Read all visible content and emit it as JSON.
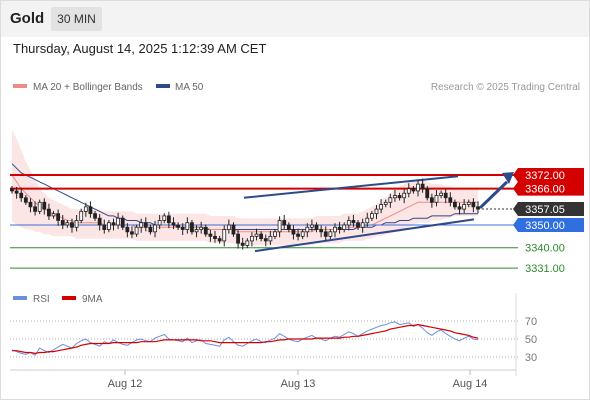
{
  "header": {
    "instrument": "Gold",
    "timeframe": "30 MIN",
    "datetime": "Thursday, August 14, 2025 1:12:39 AM CET"
  },
  "colors": {
    "candle_up": "#ffffff",
    "candle_down": "#222222",
    "ma20": "#ef8a8a",
    "ma50": "#2d4a8a",
    "bollinger_fill": "#fbdcdc",
    "resistance": "#d40000",
    "support_blue": "#3f6fd4",
    "support_green": "#2e8b2e",
    "channel": "#2d4a8a",
    "rsi": "#6b8fe0",
    "rsi_ma": "#d40000",
    "price_label_bg": "#333333",
    "blue_label_bg": "#2f6fe0"
  },
  "chart_data": [
    {
      "type": "candlestick",
      "title": "Gold",
      "timeframe": "30 MIN",
      "x_ticks": [
        "Aug 12",
        "Aug 13",
        "Aug 14"
      ],
      "ylim": [
        3328,
        3390
      ],
      "legend": [
        {
          "name": "MA 20 + Bollinger Bands",
          "color": "#ef8a8a"
        },
        {
          "name": "MA 50",
          "color": "#2d4a8a"
        }
      ],
      "watermark": "Research © 2025 Trading Central",
      "levels": [
        {
          "value": 3372.0,
          "label": "3372.00",
          "kind": "resistance"
        },
        {
          "value": 3366.0,
          "label": "3366.00",
          "kind": "resistance"
        },
        {
          "value": 3357.05,
          "label": "3357.05",
          "kind": "last_price"
        },
        {
          "value": 3350.0,
          "label": "3350.00",
          "kind": "pivot"
        },
        {
          "value": 3340.0,
          "label": "3340.00",
          "kind": "support"
        },
        {
          "value": 3331.0,
          "label": "3331.00",
          "kind": "support"
        }
      ],
      "closes": [
        3365,
        3364,
        3362,
        3360,
        3358,
        3356,
        3360,
        3357,
        3354,
        3355,
        3352,
        3350,
        3351,
        3349,
        3352,
        3356,
        3358,
        3355,
        3353,
        3350,
        3348,
        3351,
        3350,
        3353,
        3349,
        3347,
        3346,
        3349,
        3351,
        3349,
        3347,
        3350,
        3352,
        3354,
        3351,
        3350,
        3349,
        3348,
        3351,
        3347,
        3348,
        3349,
        3346,
        3345,
        3344,
        3343,
        3348,
        3350,
        3346,
        3342,
        3341,
        3343,
        3345,
        3346,
        3344,
        3343,
        3345,
        3347,
        3352,
        3350,
        3348,
        3346,
        3345,
        3347,
        3349,
        3350,
        3348,
        3347,
        3345,
        3347,
        3349,
        3348,
        3350,
        3352,
        3351,
        3349,
        3351,
        3353,
        3355,
        3357,
        3359,
        3360,
        3362,
        3363,
        3362,
        3364,
        3366,
        3365,
        3368,
        3366,
        3362,
        3360,
        3363,
        3364,
        3362,
        3360,
        3358,
        3357,
        3359,
        3360,
        3358,
        3357
      ],
      "ma20": [
        3372,
        3369,
        3366,
        3364,
        3362,
        3360,
        3358,
        3357,
        3356,
        3355,
        3354,
        3353,
        3352,
        3352,
        3351,
        3351,
        3351,
        3351,
        3351,
        3351,
        3350,
        3350,
        3350,
        3350,
        3350,
        3350,
        3350,
        3349,
        3349,
        3349,
        3349,
        3349,
        3349,
        3349,
        3349,
        3349,
        3349,
        3349,
        3349,
        3349,
        3349,
        3349,
        3349,
        3348,
        3348,
        3348,
        3348,
        3348,
        3348,
        3347,
        3347,
        3347,
        3347,
        3347,
        3347,
        3347,
        3347,
        3347,
        3347,
        3347,
        3347,
        3347,
        3347,
        3347,
        3347,
        3347,
        3348,
        3348,
        3348,
        3348,
        3348,
        3348,
        3349,
        3349,
        3349,
        3349,
        3349,
        3350,
        3350,
        3351,
        3352,
        3353,
        3354,
        3355,
        3356,
        3357,
        3358,
        3359,
        3360,
        3360,
        3360,
        3360,
        3360,
        3360,
        3360,
        3360,
        3360,
        3360,
        3360,
        3360,
        3360,
        3360
      ],
      "ma50": [
        3377,
        3375,
        3373,
        3372,
        3371,
        3370,
        3369,
        3368,
        3367,
        3366,
        3365,
        3364,
        3363,
        3362,
        3361,
        3360,
        3359,
        3358,
        3357,
        3356,
        3355,
        3354,
        3354,
        3353,
        3353,
        3352,
        3352,
        3352,
        3351,
        3351,
        3351,
        3350,
        3350,
        3350,
        3350,
        3350,
        3349,
        3349,
        3349,
        3349,
        3349,
        3349,
        3348,
        3348,
        3348,
        3348,
        3348,
        3348,
        3348,
        3348,
        3348,
        3348,
        3348,
        3348,
        3348,
        3348,
        3348,
        3348,
        3348,
        3348,
        3348,
        3348,
        3348,
        3348,
        3348,
        3348,
        3348,
        3348,
        3348,
        3348,
        3348,
        3348,
        3348,
        3348,
        3348,
        3349,
        3349,
        3349,
        3349,
        3350,
        3350,
        3351,
        3351,
        3351,
        3352,
        3352,
        3352,
        3353,
        3353,
        3353,
        3353,
        3354,
        3354,
        3354,
        3354,
        3354,
        3355,
        3355,
        3355,
        3355,
        3355,
        3355
      ],
      "bb_upper": [
        3392,
        3388,
        3383,
        3378,
        3374,
        3370,
        3366,
        3364,
        3362,
        3361,
        3360,
        3359,
        3358,
        3357,
        3357,
        3357,
        3357,
        3357,
        3357,
        3357,
        3356,
        3356,
        3356,
        3356,
        3356,
        3356,
        3356,
        3355,
        3355,
        3355,
        3355,
        3355,
        3355,
        3355,
        3355,
        3355,
        3355,
        3355,
        3355,
        3355,
        3355,
        3355,
        3355,
        3354,
        3354,
        3354,
        3354,
        3354,
        3354,
        3353,
        3353,
        3353,
        3353,
        3353,
        3353,
        3353,
        3353,
        3353,
        3353,
        3353,
        3353,
        3353,
        3353,
        3353,
        3353,
        3353,
        3354,
        3354,
        3354,
        3354,
        3354,
        3354,
        3355,
        3355,
        3355,
        3355,
        3356,
        3357,
        3358,
        3359,
        3361,
        3362,
        3364,
        3366,
        3367,
        3368,
        3369,
        3370,
        3370,
        3370,
        3369,
        3368,
        3368,
        3368,
        3367,
        3367,
        3366,
        3366,
        3366,
        3366,
        3366,
        3366
      ],
      "bb_lower": [
        3352,
        3350,
        3349,
        3348,
        3348,
        3347,
        3347,
        3346,
        3346,
        3345,
        3345,
        3345,
        3345,
        3345,
        3344,
        3344,
        3344,
        3344,
        3344,
        3344,
        3344,
        3344,
        3344,
        3344,
        3344,
        3344,
        3344,
        3343,
        3343,
        3343,
        3343,
        3343,
        3343,
        3343,
        3343,
        3343,
        3343,
        3343,
        3343,
        3343,
        3343,
        3343,
        3343,
        3342,
        3342,
        3342,
        3342,
        3342,
        3342,
        3341,
        3341,
        3341,
        3341,
        3341,
        3341,
        3341,
        3341,
        3341,
        3341,
        3341,
        3341,
        3341,
        3341,
        3341,
        3341,
        3341,
        3342,
        3342,
        3342,
        3342,
        3342,
        3342,
        3343,
        3343,
        3343,
        3343,
        3343,
        3344,
        3344,
        3345,
        3345,
        3346,
        3346,
        3347,
        3347,
        3348,
        3349,
        3350,
        3351,
        3351,
        3351,
        3352,
        3352,
        3352,
        3353,
        3353,
        3354,
        3354,
        3354,
        3354,
        3354,
        3354
      ]
    },
    {
      "type": "line",
      "title": "RSI",
      "legend": [
        {
          "name": "RSI",
          "color": "#6b8fe0"
        },
        {
          "name": "9MA",
          "color": "#d40000"
        }
      ],
      "y_ticks": [
        70,
        50,
        30
      ],
      "ylim": [
        20,
        80
      ],
      "rsi": [
        38,
        36,
        34,
        33,
        35,
        32,
        40,
        37,
        35,
        38,
        41,
        44,
        42,
        40,
        45,
        48,
        50,
        46,
        44,
        42,
        47,
        45,
        49,
        46,
        44,
        43,
        46,
        49,
        50,
        48,
        47,
        51,
        53,
        55,
        50,
        49,
        48,
        47,
        51,
        46,
        48,
        49,
        45,
        44,
        43,
        42,
        49,
        52,
        47,
        43,
        42,
        45,
        48,
        50,
        47,
        46,
        49,
        51,
        56,
        53,
        50,
        48,
        47,
        50,
        52,
        54,
        51,
        50,
        48,
        51,
        53,
        52,
        55,
        58,
        56,
        53,
        56,
        59,
        61,
        63,
        65,
        66,
        68,
        69,
        66,
        67,
        68,
        64,
        66,
        62,
        57,
        54,
        58,
        60,
        56,
        53,
        50,
        48,
        51,
        53,
        50,
        49
      ],
      "rsi_ma": [
        37,
        37,
        36,
        35,
        35,
        34,
        35,
        35,
        36,
        36,
        37,
        38,
        39,
        40,
        41,
        43,
        44,
        45,
        45,
        45,
        45,
        45,
        46,
        46,
        46,
        46,
        46,
        46,
        47,
        47,
        47,
        47,
        48,
        49,
        49,
        49,
        49,
        49,
        49,
        49,
        49,
        48,
        48,
        48,
        47,
        46,
        46,
        46,
        46,
        46,
        46,
        46,
        46,
        46,
        46,
        47,
        47,
        48,
        49,
        49,
        50,
        50,
        50,
        50,
        50,
        50,
        51,
        51,
        51,
        51,
        51,
        51,
        52,
        52,
        53,
        53,
        54,
        55,
        56,
        57,
        58,
        59,
        61,
        62,
        63,
        64,
        65,
        65,
        66,
        65,
        64,
        63,
        62,
        61,
        60,
        59,
        57,
        56,
        55,
        54,
        52,
        51
      ]
    }
  ]
}
